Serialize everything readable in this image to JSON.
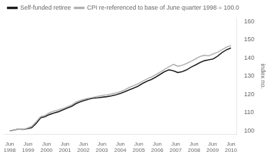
{
  "chart_data": {
    "type": "line",
    "y_label": "index no.",
    "x": [
      0,
      0.24,
      0.48,
      0.72,
      0.96,
      1.2,
      1.44,
      1.68,
      1.92,
      2.16,
      2.4,
      2.64,
      2.88,
      3.12,
      3.36,
      3.6,
      3.84,
      4.08,
      4.32,
      4.56,
      4.8,
      5.04,
      5.28,
      5.52,
      5.76,
      6,
      6.24,
      6.48,
      6.72,
      6.96,
      7.2,
      7.44,
      7.68,
      7.92,
      8.16,
      8.4,
      8.64,
      8.88,
      9.12,
      9.36,
      9.6,
      9.84,
      10.08,
      10.32,
      10.56,
      10.8,
      11.04,
      11.28,
      11.52,
      11.76,
      12
    ],
    "xlim": [
      -0.3,
      12.3
    ],
    "xticks": [
      {
        "value": 0,
        "label": "Jun\n1998"
      },
      {
        "value": 1,
        "label": "Jun\n1999"
      },
      {
        "value": 2,
        "label": "Jun\n2000"
      },
      {
        "value": 3,
        "label": "Jun\n2001"
      },
      {
        "value": 4,
        "label": "Jun\n2002"
      },
      {
        "value": 5,
        "label": "Jun\n2003"
      },
      {
        "value": 6,
        "label": "Jun\n2004"
      },
      {
        "value": 7,
        "label": "Jun\n2005"
      },
      {
        "value": 8,
        "label": "Jun\n2006"
      },
      {
        "value": 9,
        "label": "Jun\n2007"
      },
      {
        "value": 10,
        "label": "Jun\n2008"
      },
      {
        "value": 11,
        "label": "Jun\n2009"
      },
      {
        "value": 12,
        "label": "Jun\n2010"
      }
    ],
    "ylim": [
      98,
      162
    ],
    "yticks": [
      100,
      110,
      120,
      130,
      140,
      150,
      160
    ],
    "grid": false,
    "legend": "upper left",
    "series": [
      {
        "name": "CPI re-referenced to base of June quarter 1998 = 100.0",
        "color": "#b0b0b0",
        "values": [
          100.0,
          100.5,
          101.0,
          100.8,
          101.5,
          102.5,
          105.0,
          107.8,
          108.5,
          110.0,
          110.8,
          111.5,
          112.2,
          113.2,
          114.2,
          115.8,
          116.8,
          117.5,
          118.0,
          118.5,
          119.0,
          119.5,
          119.8,
          120.2,
          120.8,
          121.5,
          122.5,
          123.8,
          124.8,
          125.8,
          127.2,
          128.5,
          129.5,
          130.8,
          132.2,
          133.8,
          135.2,
          136.5,
          135.5,
          136.0,
          137.0,
          138.2,
          139.5,
          140.8,
          141.5,
          141.2,
          142.2,
          143.2,
          144.5,
          146.0,
          146.8
        ]
      },
      {
        "name": "Self-funded retiree",
        "color": "#1a1a1a",
        "values": [
          100.0,
          100.5,
          101.0,
          100.8,
          101.2,
          101.8,
          104.2,
          107.2,
          107.8,
          109.0,
          109.8,
          110.5,
          111.5,
          112.5,
          113.5,
          115.0,
          116.0,
          116.8,
          117.5,
          118.0,
          118.2,
          118.5,
          118.8,
          119.2,
          119.8,
          120.5,
          121.5,
          122.5,
          123.5,
          124.5,
          126.0,
          127.2,
          128.2,
          129.5,
          131.0,
          132.5,
          133.5,
          133.0,
          132.0,
          132.5,
          133.5,
          135.0,
          136.2,
          137.5,
          138.5,
          139.0,
          139.5,
          141.0,
          143.0,
          144.5,
          145.5
        ]
      }
    ]
  }
}
